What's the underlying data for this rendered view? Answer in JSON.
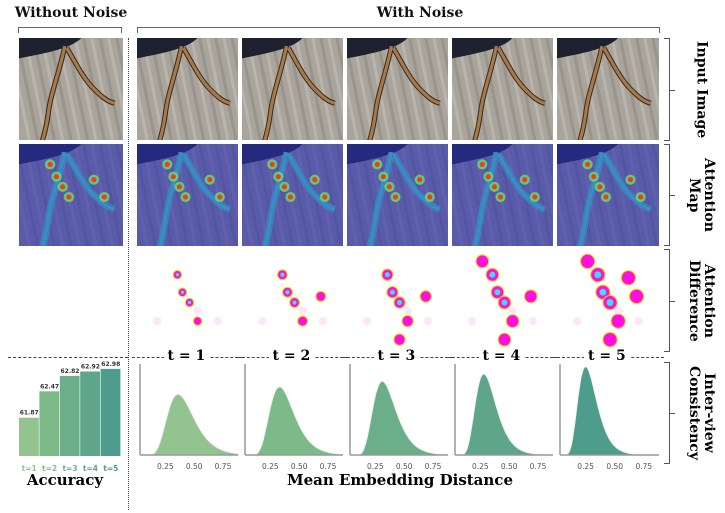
{
  "headers": {
    "without_noise": "Without Noise",
    "with_noise": "With Noise"
  },
  "row_labels": {
    "input_image": "Input Image",
    "attention_map": "Attention Map",
    "attention_difference": "Attention Difference",
    "inter_view_consistency": "Inter-view Consistency"
  },
  "steps": [
    "t = 1",
    "t = 2",
    "t = 3",
    "t = 4",
    "t = 5"
  ],
  "footers": {
    "accuracy": "Accuracy",
    "distance": "Mean Embedding Distance"
  },
  "chart_data": [
    {
      "type": "bar",
      "title": "Accuracy",
      "categories": [
        "t=1",
        "t=2",
        "t=3",
        "t=4",
        "t=5"
      ],
      "values": [
        61.87,
        62.47,
        62.82,
        62.92,
        62.98
      ],
      "ylim": [
        61.0,
        63.0
      ],
      "colors": [
        "#93c48f",
        "#7dba8a",
        "#6aaf89",
        "#5ea58a",
        "#4e9c8c"
      ],
      "grid": false
    },
    {
      "type": "area",
      "title": "Mean Embedding Distance",
      "xticks": [
        0.25,
        0.5,
        0.75
      ],
      "xtick_labels": [
        "0.25",
        "0.50",
        "0.75"
      ],
      "xlim": [
        0.03,
        0.88
      ],
      "series": [
        {
          "name": "t = 1",
          "peak_x": 0.36,
          "peak_height": 0.66,
          "color": "#93c48f"
        },
        {
          "name": "t = 2",
          "peak_x": 0.33,
          "peak_height": 0.74,
          "color": "#7dba8a"
        },
        {
          "name": "t = 3",
          "peak_x": 0.31,
          "peak_height": 0.8,
          "color": "#6aaf89"
        },
        {
          "name": "t = 4",
          "peak_x": 0.28,
          "peak_height": 0.88,
          "color": "#5ea58a"
        },
        {
          "name": "t = 5",
          "peak_x": 0.25,
          "peak_height": 0.96,
          "color": "#4e9c8c"
        }
      ]
    }
  ]
}
